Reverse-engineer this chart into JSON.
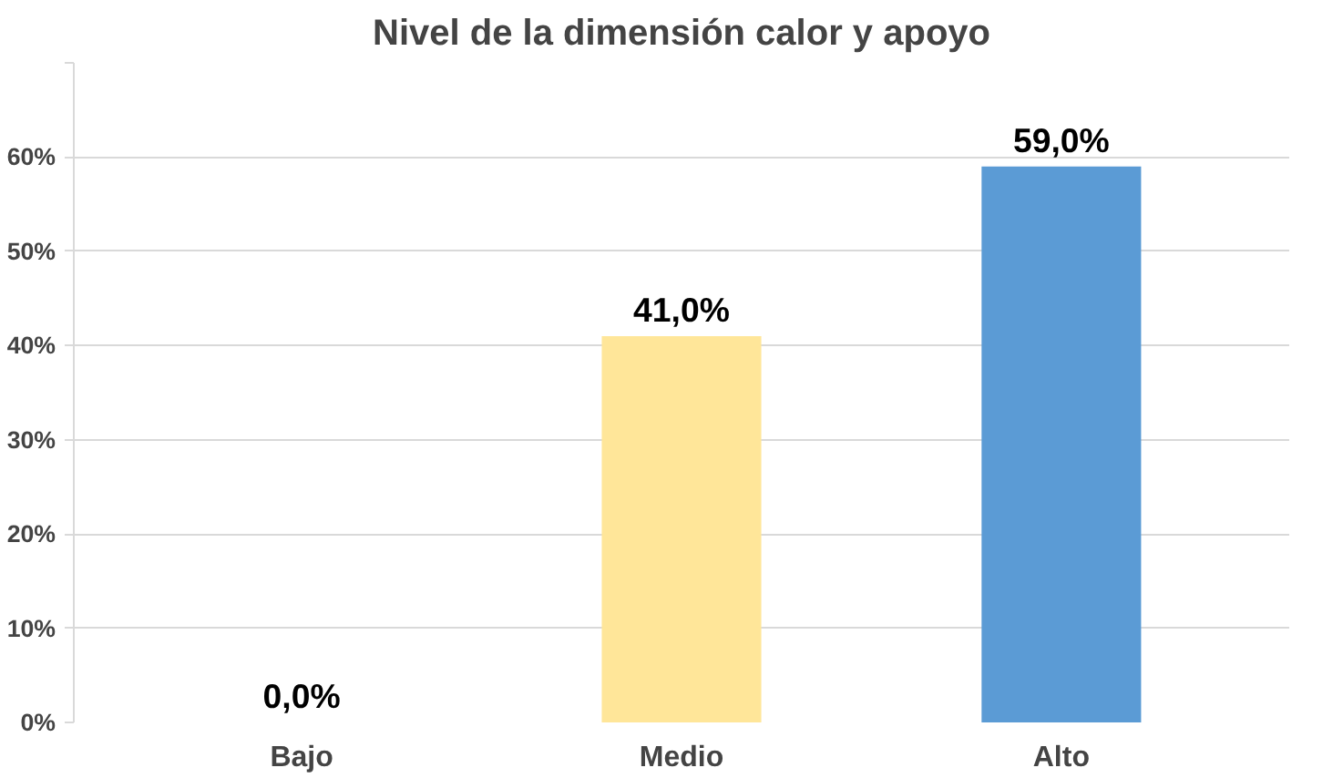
{
  "chart_data": {
    "type": "bar",
    "title": "Nivel de la dimensión calor y apoyo",
    "categories": [
      "Bajo",
      "Medio",
      "Alto"
    ],
    "values": [
      0,
      41,
      59
    ],
    "colors": [
      "#c00000",
      "#ffe699",
      "#5b9bd5"
    ],
    "value_labels": [
      "0,0%",
      "41,0%",
      "59,0%"
    ],
    "ylim": [
      0,
      70
    ],
    "yticks": [
      {
        "value": 0,
        "label": "0%"
      },
      {
        "value": 10,
        "label": "10%"
      },
      {
        "value": 20,
        "label": "20%"
      },
      {
        "value": 30,
        "label": "30%"
      },
      {
        "value": 40,
        "label": "40%"
      },
      {
        "value": 50,
        "label": "50%"
      },
      {
        "value": 60,
        "label": "60%"
      },
      {
        "value": 70,
        "label": null
      }
    ],
    "grid": "y"
  }
}
